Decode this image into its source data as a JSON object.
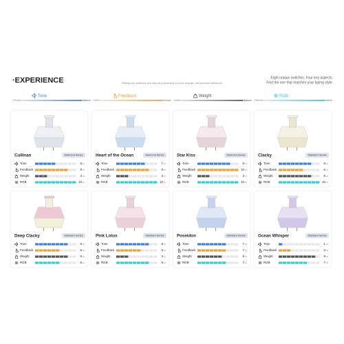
{
  "header": {
    "title": "·EXPERIENCE",
    "note": "*Ratings are subjective and may vary depending on build, keycaps, and personal preference.",
    "tagline": [
      "Eight unique switches. Four key aspects.",
      "Find the one that matches your typing style."
    ]
  },
  "scale": {
    "max": 10,
    "suffix": "/10"
  },
  "aspects": [
    {
      "name": "Tone",
      "color": "#3d7fe0",
      "low": "1 (Thocky)",
      "high": "10 (Clacky)"
    },
    {
      "name": "Feedback",
      "color": "#f0a030",
      "low": "1 (Soft)",
      "high": "10 (Snappy)"
    },
    {
      "name": "Weight",
      "color": "#555555",
      "low": "1 (Light)",
      "high": "10 (Heavy)"
    },
    {
      "name": "RGB",
      "color": "#2ecfd8",
      "low": "1 (Minimal)",
      "high": "10 (Vivid)"
    }
  ],
  "switches": [
    {
      "name": "Cullinan",
      "series": "Diamond Series",
      "ratings": [
        5,
        8,
        3,
        10
      ]
    },
    {
      "name": "Heart of the Ocean",
      "series": "Diamond Series",
      "ratings": [
        7,
        8,
        3,
        10
      ]
    },
    {
      "name": "Star Kiss",
      "series": "Diamond Series",
      "ratings": [
        8,
        10,
        3,
        10
      ]
    },
    {
      "name": "Clacky",
      "series": "Standard Series",
      "ratings": [
        8,
        6,
        8,
        10
      ]
    },
    {
      "name": "Deep Clacky",
      "series": "Standard Series",
      "ratings": [
        8,
        6,
        8,
        6
      ]
    },
    {
      "name": "Pink Lotus",
      "series": "Standard Series",
      "ratings": [
        8,
        6,
        3,
        8
      ]
    },
    {
      "name": "Poseidon",
      "series": "Standard Series",
      "ratings": [
        7,
        7,
        6,
        7
      ]
    },
    {
      "name": "Ocean Whisper",
      "series": "Standard Series",
      "ratings": [
        1,
        3,
        9,
        7
      ]
    }
  ]
}
